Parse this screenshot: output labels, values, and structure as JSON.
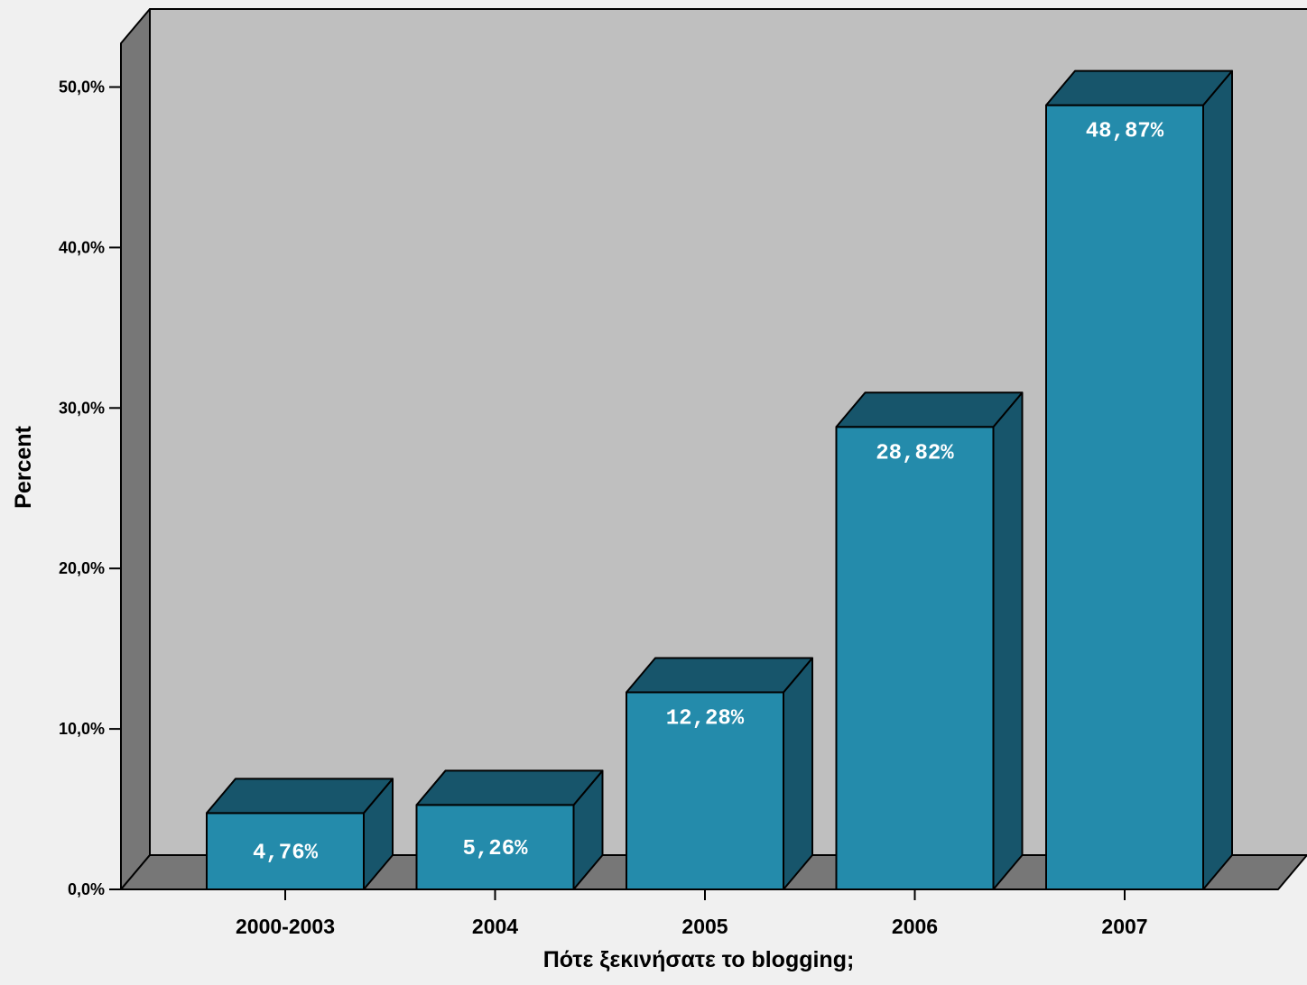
{
  "chart_data": {
    "type": "bar",
    "title": "",
    "xlabel": "Πότε ξεκινήσατε το blogging;",
    "ylabel": "Percent",
    "categories": [
      "2000-2003",
      "2004",
      "2005",
      "2006",
      "2007"
    ],
    "values": [
      4.76,
      5.26,
      12.28,
      28.82,
      48.87
    ],
    "data_labels": [
      "4,76%",
      "5,26%",
      "12,28%",
      "28,82%",
      "48,87%"
    ],
    "y_ticks": [
      0,
      10,
      20,
      30,
      40,
      50
    ],
    "y_tick_labels": [
      "0,0%",
      "10,0%",
      "20,0%",
      "30,0%",
      "40,0%",
      "50,0%"
    ],
    "ylim": [
      0,
      55
    ],
    "style": "3d",
    "grid": false,
    "legend": "none",
    "colors": {
      "bar_front": "#248bab",
      "bar_side": "#17556b",
      "wall": "#bfbfbf",
      "wall_side": "#777777",
      "floor": "#777777",
      "background": "#f0f0f0"
    }
  }
}
